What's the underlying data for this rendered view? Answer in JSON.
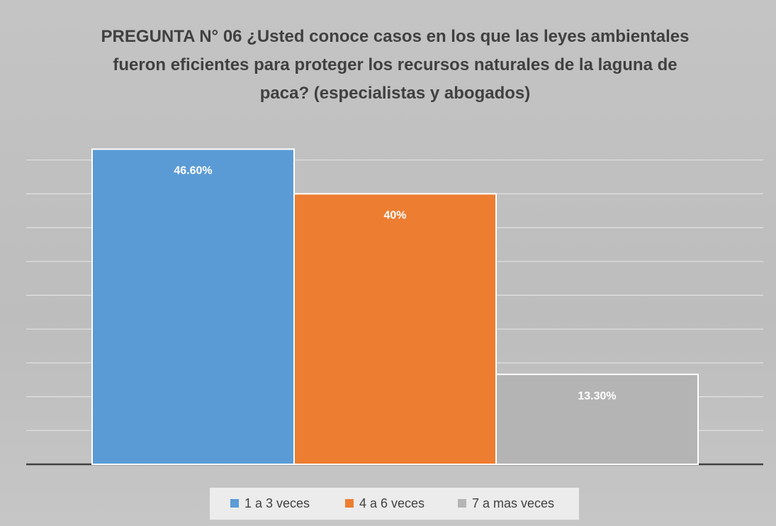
{
  "chart_data": {
    "type": "bar",
    "title": "PREGUNTA N° 06 ¿Usted conoce casos en los que las leyes ambientales fueron eficientes para proteger los recursos naturales de la laguna de paca? (especialistas y abogados)",
    "categories": [
      null
    ],
    "series": [
      {
        "name": "1 a 3 veces",
        "color": "#5b9bd5",
        "values": [
          46.6
        ],
        "value_labels": [
          "46.60%"
        ]
      },
      {
        "name": "4 a 6 veces",
        "color": "#ed7d31",
        "values": [
          40
        ],
        "value_labels": [
          "40%"
        ]
      },
      {
        "name": "7 a mas veces",
        "color": "#b4b4b4",
        "values": [
          13.3
        ],
        "value_labels": [
          "13.30%"
        ]
      }
    ],
    "ylim": [
      0,
      50
    ],
    "yticks": [
      0,
      5,
      10,
      15,
      20,
      25,
      30,
      35,
      40,
      45
    ],
    "grid": true,
    "legend": "bottom"
  }
}
